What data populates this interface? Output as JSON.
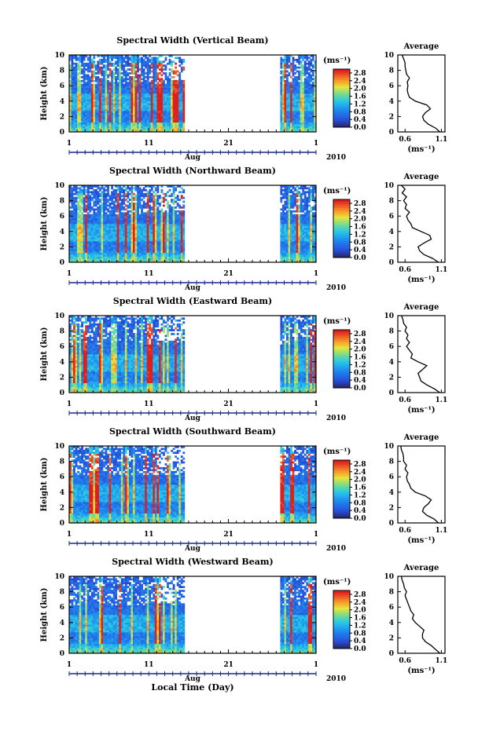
{
  "chart_data": [
    {
      "type": "heatmap",
      "title": "Spectral Width (Vertical Beam)",
      "ylabel": "Height (km)",
      "xlabel": "Aug",
      "year": "2010",
      "xticks": [
        "1",
        "11",
        "21",
        "1"
      ],
      "xlim": [
        1,
        32
      ],
      "ylim": [
        0,
        10
      ],
      "yticks": [
        "0",
        "2",
        "4",
        "6",
        "8",
        "10"
      ],
      "data_segments": [
        [
          1,
          15.5
        ],
        [
          27.5,
          32
        ]
      ],
      "colorbar_unit": "(ms⁻¹)",
      "colorbar_ticks": [
        "0.0",
        "0.4",
        "0.8",
        "1.2",
        "1.6",
        "2.0",
        "2.4",
        "2.8"
      ],
      "colorbar_range": [
        0.0,
        3.0
      ],
      "average": {
        "title": "Average",
        "xlabel": "(ms⁻¹)",
        "xticks": [
          "0.6",
          "1.1"
        ],
        "xlim": [
          0.5,
          1.15
        ],
        "height_km": [
          0,
          0.5,
          1,
          1.5,
          2,
          2.5,
          3,
          3.5,
          4,
          4.5,
          5,
          5.5,
          6,
          6.5,
          7,
          7.5,
          8,
          8.5,
          9,
          9.5,
          10
        ],
        "value": [
          1.08,
          1.02,
          0.92,
          0.86,
          0.84,
          0.88,
          0.95,
          0.9,
          0.74,
          0.66,
          0.64,
          0.63,
          0.64,
          0.63,
          0.66,
          0.62,
          0.61,
          0.6,
          0.6,
          0.58,
          0.56
        ]
      }
    },
    {
      "type": "heatmap",
      "title": "Spectral Width (Northward Beam)",
      "ylabel": "Height (km)",
      "xlabel": "Aug",
      "year": "2010",
      "xticks": [
        "1",
        "11",
        "21",
        "1"
      ],
      "xlim": [
        1,
        32
      ],
      "ylim": [
        0,
        10
      ],
      "yticks": [
        "0",
        "2",
        "4",
        "6",
        "8",
        "10"
      ],
      "data_segments": [
        [
          1,
          15.5
        ],
        [
          27.5,
          32
        ]
      ],
      "colorbar_unit": "(ms⁻¹)",
      "colorbar_ticks": [
        "0.0",
        "0.4",
        "0.8",
        "1.2",
        "1.6",
        "2.0",
        "2.4",
        "2.8"
      ],
      "colorbar_range": [
        0.0,
        3.0
      ],
      "average": {
        "title": "Average",
        "xlabel": "(ms⁻¹)",
        "xticks": [
          "0.6",
          "1.1"
        ],
        "xlim": [
          0.5,
          1.15
        ],
        "height_km": [
          0,
          0.5,
          1,
          1.5,
          2,
          2.5,
          3,
          3.5,
          4,
          4.5,
          5,
          5.5,
          6,
          6.5,
          7,
          7.5,
          8,
          8.5,
          9,
          9.5,
          10
        ],
        "value": [
          1.06,
          0.98,
          0.86,
          0.8,
          0.78,
          0.86,
          0.96,
          0.94,
          0.82,
          0.7,
          0.68,
          0.64,
          0.62,
          0.66,
          0.6,
          0.62,
          0.58,
          0.62,
          0.56,
          0.6,
          0.55
        ]
      }
    },
    {
      "type": "heatmap",
      "title": "Spectral Width (Eastward Beam)",
      "ylabel": "Height (km)",
      "xlabel": "Aug",
      "year": "2010",
      "xticks": [
        "1",
        "11",
        "21",
        "1"
      ],
      "xlim": [
        1,
        32
      ],
      "ylim": [
        0,
        10
      ],
      "yticks": [
        "0",
        "2",
        "4",
        "6",
        "8",
        "10"
      ],
      "data_segments": [
        [
          1,
          15.5
        ],
        [
          27.5,
          32
        ]
      ],
      "colorbar_unit": "(ms⁻¹)",
      "colorbar_ticks": [
        "0.0",
        "0.4",
        "0.8",
        "1.2",
        "1.6",
        "2.0",
        "2.4",
        "2.8"
      ],
      "colorbar_range": [
        0.0,
        3.0
      ],
      "average": {
        "title": "Average",
        "xlabel": "(ms⁻¹)",
        "xticks": [
          "0.6",
          "1.1"
        ],
        "xlim": [
          0.5,
          1.15
        ],
        "height_km": [
          0,
          0.5,
          1,
          1.5,
          2,
          2.5,
          3,
          3.5,
          4,
          4.5,
          5,
          5.5,
          6,
          6.5,
          7,
          7.5,
          8,
          8.5,
          9,
          9.5,
          10
        ],
        "value": [
          1.08,
          1.0,
          0.9,
          0.82,
          0.8,
          0.78,
          0.84,
          0.9,
          0.78,
          0.68,
          0.7,
          0.66,
          0.62,
          0.66,
          0.62,
          0.64,
          0.6,
          0.62,
          0.58,
          0.57,
          0.55
        ]
      }
    },
    {
      "type": "heatmap",
      "title": "Spectral Width (Southward Beam)",
      "ylabel": "Height (km)",
      "xlabel": "Aug",
      "year": "2010",
      "xticks": [
        "1",
        "11",
        "21",
        "1"
      ],
      "xlim": [
        1,
        32
      ],
      "ylim": [
        0,
        10
      ],
      "yticks": [
        "0",
        "2",
        "4",
        "6",
        "8",
        "10"
      ],
      "data_segments": [
        [
          1,
          15.5
        ],
        [
          27.5,
          32
        ]
      ],
      "colorbar_unit": "(ms⁻¹)",
      "colorbar_ticks": [
        "0.0",
        "0.4",
        "0.8",
        "1.2",
        "1.6",
        "2.0",
        "2.4",
        "2.8"
      ],
      "colorbar_range": [
        0.0,
        3.0
      ],
      "average": {
        "title": "Average",
        "xlabel": "(ms⁻¹)",
        "xticks": [
          "0.6",
          "1.1"
        ],
        "xlim": [
          0.5,
          1.15
        ],
        "height_km": [
          0,
          0.5,
          1,
          1.5,
          2,
          2.5,
          3,
          3.5,
          4,
          4.5,
          5,
          5.5,
          6,
          6.5,
          7,
          7.5,
          8,
          8.5,
          9,
          9.5,
          10
        ],
        "value": [
          1.06,
          1.0,
          0.9,
          0.84,
          0.86,
          0.92,
          0.96,
          0.88,
          0.74,
          0.68,
          0.66,
          0.63,
          0.62,
          0.64,
          0.6,
          0.62,
          0.58,
          0.58,
          0.57,
          0.55,
          0.54
        ]
      }
    },
    {
      "type": "heatmap",
      "title": "Spectral Width (Westward Beam)",
      "ylabel": "Height (km)",
      "xlabel": "Aug",
      "year": "2010",
      "xticks": [
        "1",
        "11",
        "21",
        "1"
      ],
      "xlim": [
        1,
        32
      ],
      "ylim": [
        0,
        10
      ],
      "yticks": [
        "0",
        "2",
        "4",
        "6",
        "8",
        "10"
      ],
      "data_segments": [
        [
          1,
          15.5
        ],
        [
          27.5,
          32
        ]
      ],
      "colorbar_unit": "(ms⁻¹)",
      "colorbar_ticks": [
        "0.0",
        "0.4",
        "0.8",
        "1.2",
        "1.6",
        "2.0",
        "2.4",
        "2.8"
      ],
      "colorbar_range": [
        0.0,
        3.0
      ],
      "average": {
        "title": "Average",
        "xlabel": "(ms⁻¹)",
        "xticks": [
          "0.6",
          "1.1"
        ],
        "xlim": [
          0.5,
          1.15
        ],
        "height_km": [
          0,
          0.5,
          1,
          1.5,
          2,
          2.5,
          3,
          3.5,
          4,
          4.5,
          5,
          5.5,
          6,
          6.5,
          7,
          7.5,
          8,
          8.5,
          9,
          9.5,
          10
        ],
        "value": [
          1.08,
          1.02,
          0.96,
          0.88,
          0.84,
          0.84,
          0.86,
          0.8,
          0.74,
          0.7,
          0.72,
          0.68,
          0.66,
          0.64,
          0.62,
          0.6,
          0.62,
          0.59,
          0.58,
          0.56,
          0.55
        ]
      }
    }
  ],
  "figure": {
    "bottom_xlabel": "Local Time (Day)"
  }
}
